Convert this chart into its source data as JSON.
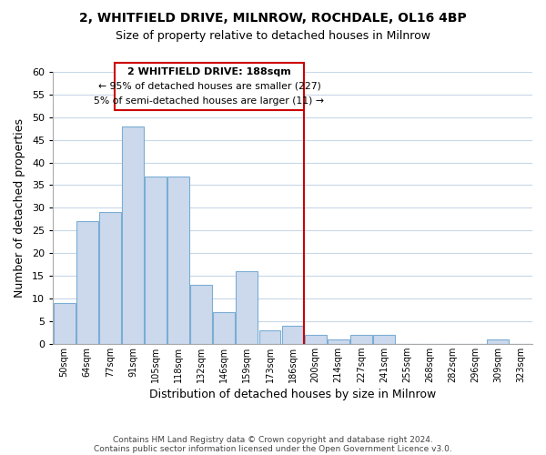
{
  "title": "2, WHITFIELD DRIVE, MILNROW, ROCHDALE, OL16 4BP",
  "subtitle": "Size of property relative to detached houses in Milnrow",
  "xlabel": "Distribution of detached houses by size in Milnrow",
  "ylabel": "Number of detached properties",
  "bar_labels": [
    "50sqm",
    "64sqm",
    "77sqm",
    "91sqm",
    "105sqm",
    "118sqm",
    "132sqm",
    "146sqm",
    "159sqm",
    "173sqm",
    "186sqm",
    "200sqm",
    "214sqm",
    "227sqm",
    "241sqm",
    "255sqm",
    "268sqm",
    "282sqm",
    "296sqm",
    "309sqm",
    "323sqm"
  ],
  "bar_values": [
    9,
    27,
    29,
    48,
    37,
    37,
    13,
    7,
    16,
    3,
    4,
    2,
    1,
    2,
    2,
    0,
    0,
    0,
    0,
    1,
    0
  ],
  "bar_color": "#ccd9ed",
  "bar_edge_color": "#7aadd4",
  "ylim": [
    0,
    60
  ],
  "yticks": [
    0,
    5,
    10,
    15,
    20,
    25,
    30,
    35,
    40,
    45,
    50,
    55,
    60
  ],
  "vline_x": 10.5,
  "vline_color": "#cc0000",
  "annotation_title": "2 WHITFIELD DRIVE: 188sqm",
  "annotation_line1": "← 95% of detached houses are smaller (227)",
  "annotation_line2": "5% of semi-detached houses are larger (11) →",
  "annotation_box_color": "#ffffff",
  "annotation_box_edge": "#cc0000",
  "footer1": "Contains HM Land Registry data © Crown copyright and database right 2024.",
  "footer2": "Contains public sector information licensed under the Open Government Licence v3.0.",
  "background_color": "#ffffff",
  "grid_color": "#c8d8e8"
}
